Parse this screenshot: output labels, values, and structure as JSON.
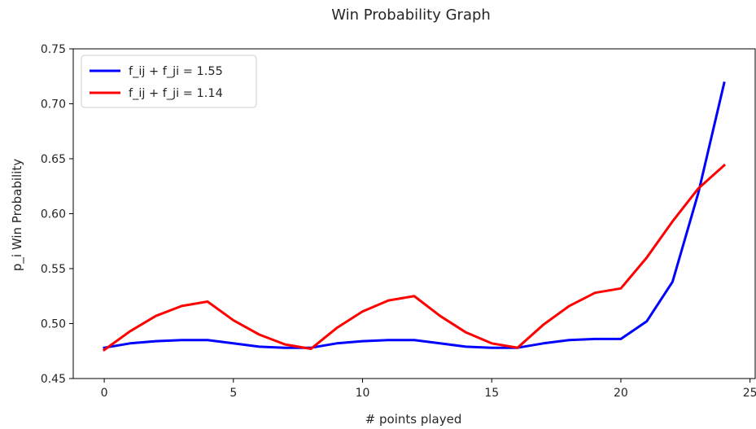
{
  "chart_data": {
    "type": "line",
    "title": "Win Probability Graph",
    "xlabel": "# points played",
    "ylabel": "p_i Win Probability",
    "xlim": [
      -1.2,
      25.2
    ],
    "ylim": [
      0.45,
      0.75
    ],
    "xticks": [
      0,
      5,
      10,
      15,
      20,
      25
    ],
    "yticks": [
      0.45,
      0.5,
      0.55,
      0.6,
      0.65,
      0.7,
      0.75
    ],
    "xtick_labels": [
      "0",
      "5",
      "10",
      "15",
      "20",
      "25"
    ],
    "ytick_labels": [
      "0.45",
      "0.50",
      "0.55",
      "0.60",
      "0.65",
      "0.70",
      "0.75"
    ],
    "grid": false,
    "legend_position": "top-left",
    "x": [
      0,
      1,
      2,
      3,
      4,
      5,
      6,
      7,
      8,
      9,
      10,
      11,
      12,
      13,
      14,
      15,
      16,
      17,
      18,
      19,
      20,
      21,
      22,
      23,
      24
    ],
    "series": [
      {
        "name": "f_ij + f_ji = 1.55",
        "color": "#0000ff",
        "values": [
          0.478,
          0.482,
          0.484,
          0.485,
          0.485,
          0.482,
          0.479,
          0.478,
          0.478,
          0.482,
          0.484,
          0.485,
          0.485,
          0.482,
          0.479,
          0.478,
          0.478,
          0.482,
          0.485,
          0.486,
          0.486,
          0.502,
          0.538,
          0.619,
          0.719
        ]
      },
      {
        "name": "f_ij + f_ji = 1.14",
        "color": "#ff0000",
        "values": [
          0.476,
          0.493,
          0.507,
          0.516,
          0.52,
          0.503,
          0.49,
          0.481,
          0.477,
          0.496,
          0.511,
          0.521,
          0.525,
          0.507,
          0.492,
          0.482,
          0.478,
          0.499,
          0.516,
          0.528,
          0.532,
          0.56,
          0.593,
          0.623,
          0.644
        ]
      }
    ]
  }
}
